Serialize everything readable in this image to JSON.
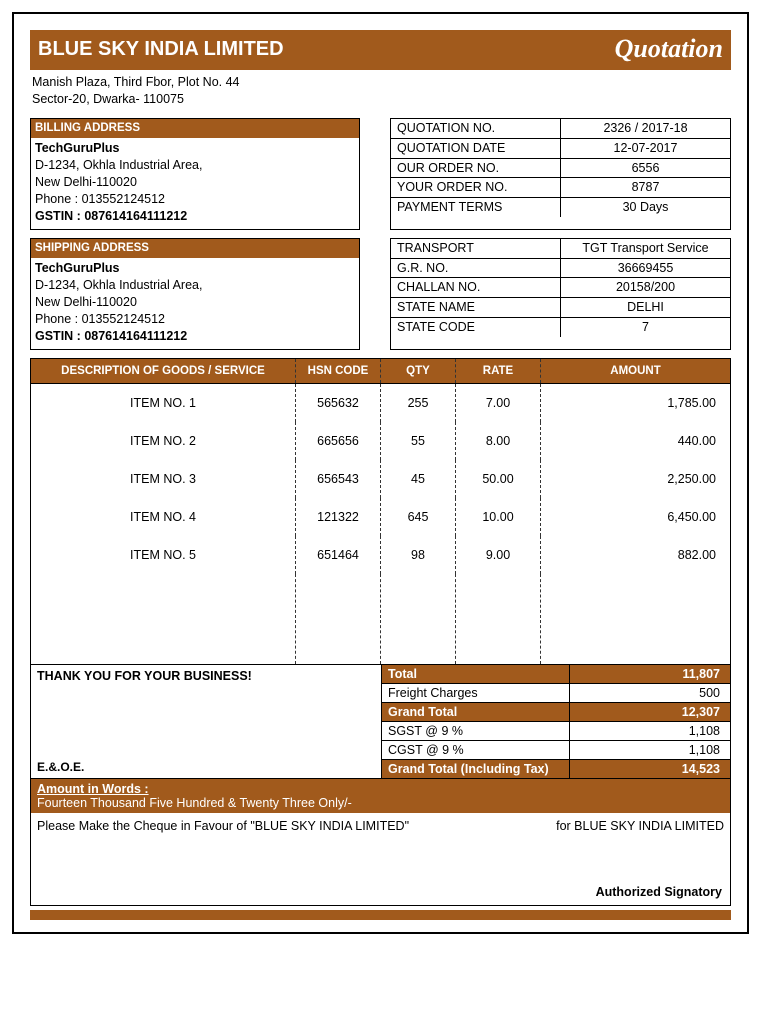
{
  "colors": {
    "accent": "#a15a1c",
    "text": "#000000",
    "bg": "#ffffff"
  },
  "header": {
    "company": "BLUE SKY INDIA LIMITED",
    "title": "Quotation",
    "address_line1": "Manish Plaza, Third Fbor, Plot No. 44",
    "address_line2": "Sector-20, Dwarka- 110075"
  },
  "billing": {
    "header": "BILLING ADDRESS",
    "name": "TechGuruPlus",
    "line1": "D-1234, Okhla Industrial Area,",
    "line2": "New Delhi-110020",
    "phone_label": "Phone : ",
    "phone": "013552124512",
    "gstin_label": "GSTIN : ",
    "gstin": "087614164111212"
  },
  "shipping": {
    "header": "SHIPPING ADDRESS",
    "name": "TechGuruPlus",
    "line1": "D-1234, Okhla Industrial Area,",
    "line2": "New Delhi-110020",
    "phone_label": "Phone : ",
    "phone": "013552124512",
    "gstin_label": "GSTIN : ",
    "gstin": "087614164111212"
  },
  "meta1": {
    "rows": [
      {
        "label": "QUOTATION NO.",
        "value": "2326 / 2017-18"
      },
      {
        "label": "QUOTATION DATE",
        "value": "12-07-2017"
      },
      {
        "label": "OUR ORDER NO.",
        "value": "6556"
      },
      {
        "label": "YOUR ORDER NO.",
        "value": "8787"
      },
      {
        "label": "PAYMENT TERMS",
        "value": "30 Days"
      }
    ]
  },
  "meta2": {
    "rows": [
      {
        "label": "TRANSPORT",
        "value": "TGT Transport Service"
      },
      {
        "label": "G.R. NO.",
        "value": "36669455"
      },
      {
        "label": "CHALLAN NO.",
        "value": "20158/200"
      },
      {
        "label": "STATE NAME",
        "value": "DELHI"
      },
      {
        "label": "STATE CODE",
        "value": "7"
      }
    ]
  },
  "items": {
    "headers": {
      "desc": "DESCRIPTION OF GOODS / SERVICE",
      "hsn": "HSN CODE",
      "qty": "QTY",
      "rate": "RATE",
      "amount": "AMOUNT"
    },
    "rows": [
      {
        "desc": "ITEM NO. 1",
        "hsn": "565632",
        "qty": "255",
        "rate": "7.00",
        "amount": "1,785.00"
      },
      {
        "desc": "ITEM NO. 2",
        "hsn": "665656",
        "qty": "55",
        "rate": "8.00",
        "amount": "440.00"
      },
      {
        "desc": "ITEM NO. 3",
        "hsn": "656543",
        "qty": "45",
        "rate": "50.00",
        "amount": "2,250.00"
      },
      {
        "desc": "ITEM NO. 4",
        "hsn": "121322",
        "qty": "645",
        "rate": "10.00",
        "amount": "6,450.00"
      },
      {
        "desc": "ITEM NO. 5",
        "hsn": "651464",
        "qty": "98",
        "rate": "9.00",
        "amount": "882.00"
      }
    ]
  },
  "footer": {
    "thanks": "THANK YOU FOR YOUR BUSINESS!",
    "eoe": "E.&.O.E.",
    "totals": [
      {
        "label": "Total",
        "value": "11,807",
        "hl": true
      },
      {
        "label": "Freight Charges",
        "value": "500",
        "hl": false
      },
      {
        "label": "Grand Total",
        "value": "12,307",
        "hl": true
      },
      {
        "label": "SGST @ 9 %",
        "value": "1,108",
        "hl": false
      },
      {
        "label": "CGST @ 9 %",
        "value": "1,108",
        "hl": false
      },
      {
        "label": "Grand Total (Including Tax)",
        "value": "14,523",
        "hl": true
      }
    ],
    "words_label": "Amount in Words :",
    "words": "Fourteen Thousand Five Hundred & Twenty Three Only/-",
    "cheque": "Please Make the Cheque in Favour of \"BLUE SKY INDIA LIMITED\"",
    "for_company": "for BLUE SKY INDIA LIMITED",
    "signatory": "Authorized Signatory"
  }
}
